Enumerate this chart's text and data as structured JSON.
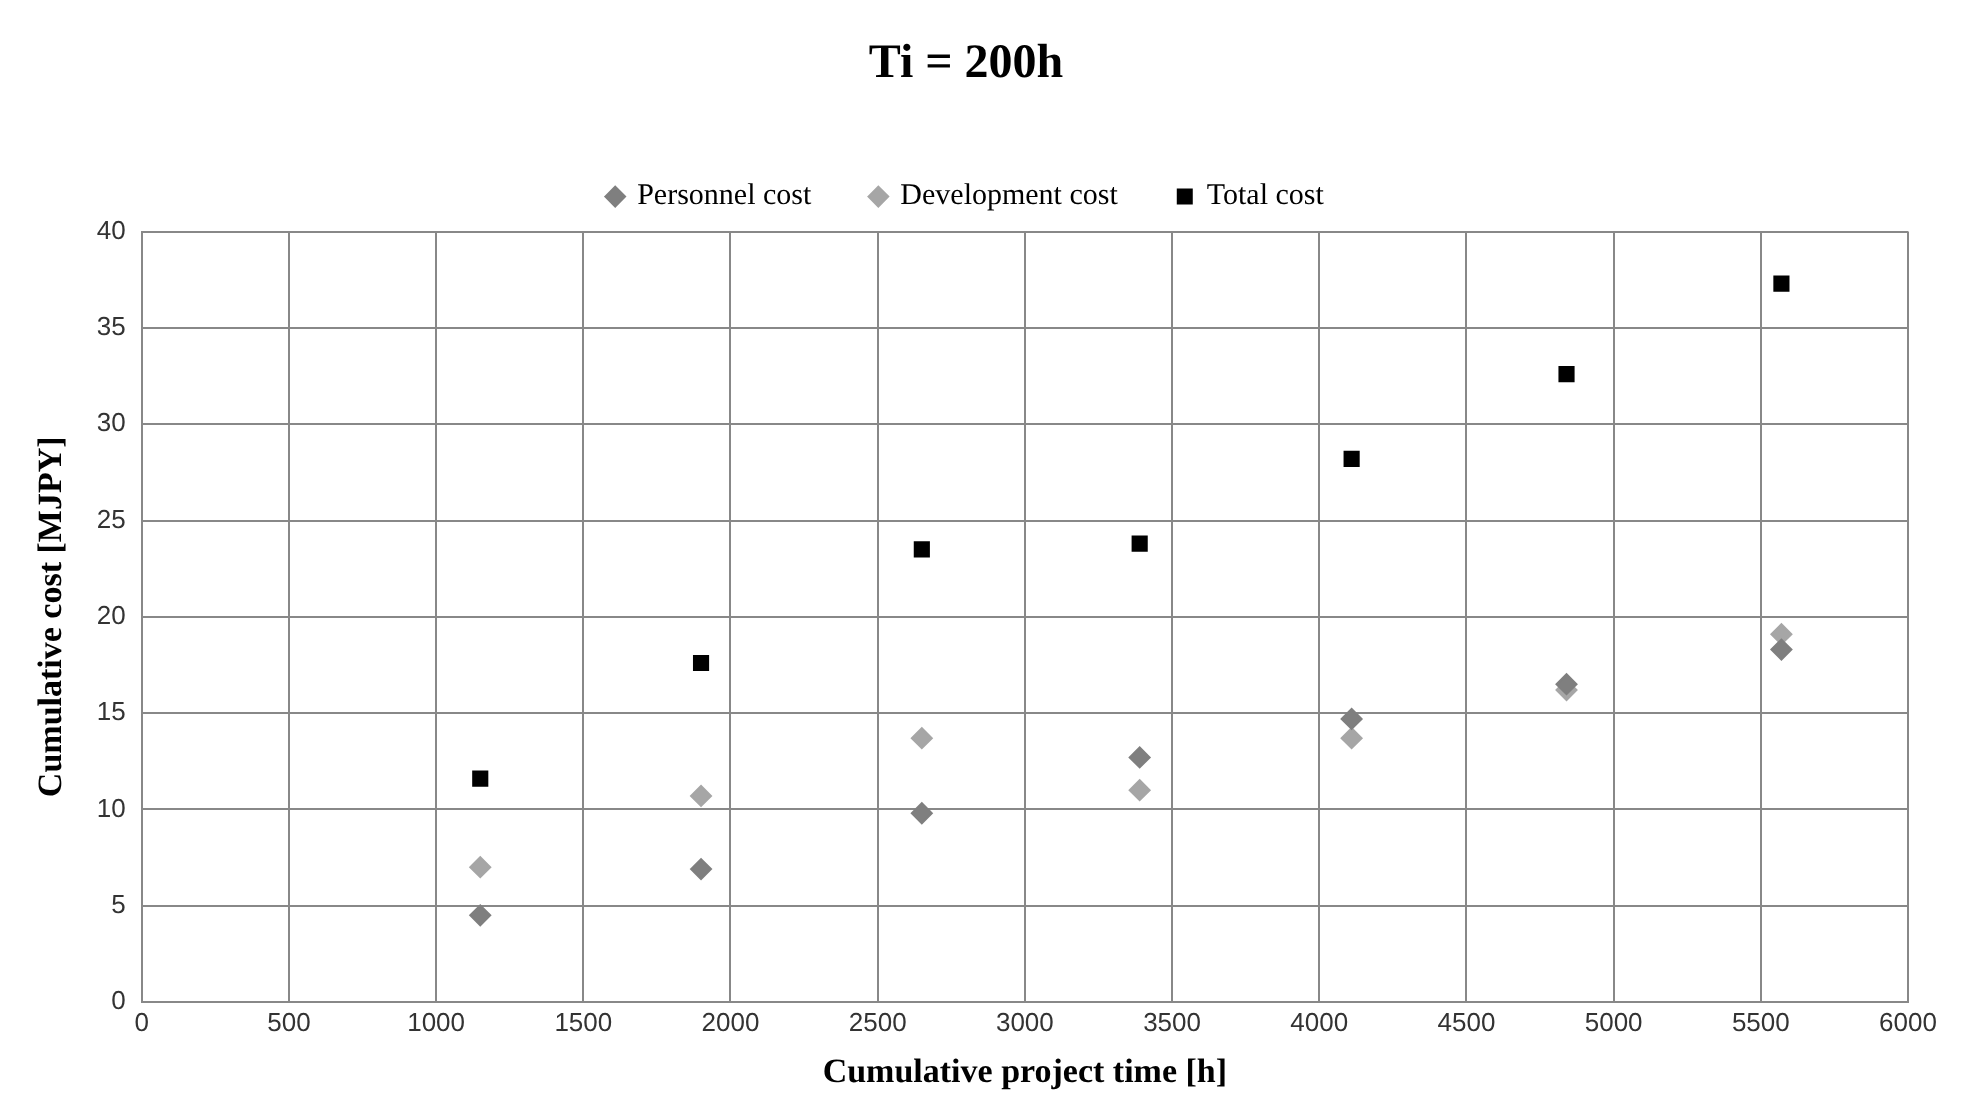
{
  "chart_data": {
    "type": "scatter",
    "title": "Ti = 200h",
    "xlabel": "Cumulative project time [h]",
    "ylabel": "Cumulative cost [MJPY]",
    "x": [
      1150,
      1900,
      2650,
      3390,
      4110,
      4840,
      5570
    ],
    "series": [
      {
        "name": "Personnel cost",
        "color": "#7f7f7f",
        "marker": "diamond",
        "values": [
          4.5,
          6.9,
          9.8,
          12.7,
          14.7,
          16.5,
          18.3
        ]
      },
      {
        "name": "Development cost",
        "color": "#a6a6a6",
        "marker": "diamond",
        "values": [
          7.0,
          10.7,
          13.7,
          11.0,
          13.7,
          16.2,
          19.1
        ]
      },
      {
        "name": "Total cost",
        "color": "#000000",
        "marker": "square",
        "values": [
          11.6,
          17.6,
          23.5,
          23.8,
          28.2,
          32.6,
          37.3
        ]
      }
    ],
    "xlim": [
      0,
      6000
    ],
    "xticks": [
      0,
      500,
      1000,
      1500,
      2000,
      2500,
      3000,
      3500,
      4000,
      4500,
      5000,
      5500,
      6000
    ],
    "ylim": [
      0,
      40
    ],
    "yticks": [
      0,
      5,
      10,
      15,
      20,
      25,
      30,
      35,
      40
    ],
    "grid": true,
    "legend": "top"
  }
}
